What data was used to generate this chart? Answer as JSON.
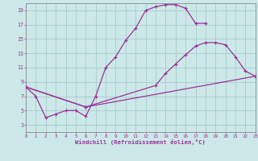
{
  "xlabel": "Windchill (Refroidissement éolien,°C)",
  "background_color": "#cce8e8",
  "grid_color": "#aacccc",
  "line_color": "#993399",
  "xlim": [
    0,
    23
  ],
  "ylim": [
    2,
    20
  ],
  "xticks": [
    0,
    1,
    2,
    3,
    4,
    5,
    6,
    7,
    8,
    9,
    10,
    11,
    12,
    13,
    14,
    15,
    16,
    17,
    18,
    19,
    20,
    21,
    22,
    23
  ],
  "yticks": [
    3,
    5,
    7,
    9,
    11,
    13,
    15,
    17,
    19
  ],
  "line1_x": [
    0,
    1,
    2,
    3,
    4,
    5,
    6,
    7,
    8,
    9,
    10,
    11,
    12,
    13,
    14,
    15,
    16,
    17,
    18
  ],
  "line1_y": [
    8.3,
    7.0,
    4.0,
    4.5,
    5.0,
    5.0,
    4.2,
    7.0,
    11.0,
    12.5,
    14.8,
    16.5,
    19.0,
    19.5,
    19.8,
    19.8,
    19.3,
    17.2,
    17.2
  ],
  "line2_x": [
    0,
    6,
    23
  ],
  "line2_y": [
    8.3,
    5.5,
    9.8
  ],
  "line3_x": [
    0,
    6,
    13,
    14,
    15,
    16,
    17,
    18,
    19,
    20,
    21,
    22,
    23
  ],
  "line3_y": [
    8.3,
    5.5,
    8.5,
    10.2,
    11.5,
    12.8,
    14.0,
    14.5,
    14.5,
    14.2,
    12.5,
    10.5,
    9.8
  ]
}
